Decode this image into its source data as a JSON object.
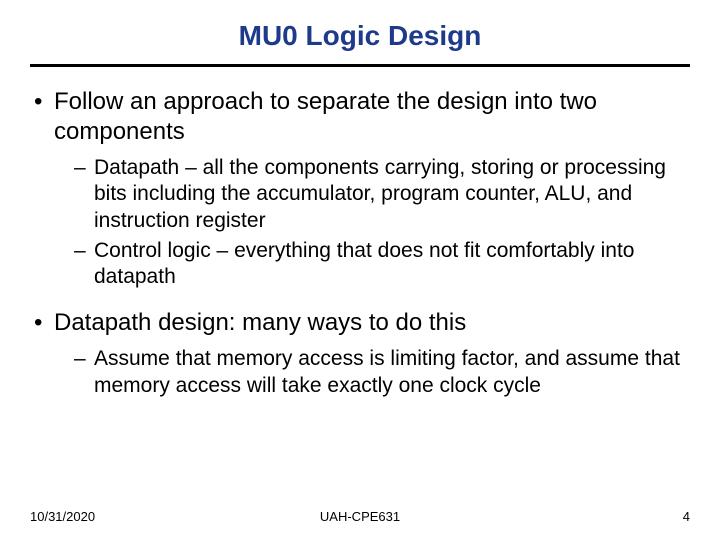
{
  "title": "MU0 Logic Design",
  "bullets": {
    "b1": "Follow an approach to separate the design into two components",
    "b1a": "Datapath – all the components carrying, storing or processing bits including the accumulator, program counter, ALU, and instruction register",
    "b1b": "Control logic – everything that does not fit comfortably into datapath",
    "b2": "Datapath design: many ways to do this",
    "b2a": "Assume that memory access is limiting factor, and assume that memory access will take exactly one clock cycle"
  },
  "footer": {
    "date": "10/31/2020",
    "course": "UAH-CPE631",
    "page": "4"
  },
  "colors": {
    "title_color": "#1e3a8a",
    "text_color": "#000000",
    "background": "#ffffff",
    "underline": "#000000"
  },
  "typography": {
    "title_fontsize": 28,
    "bullet1_fontsize": 24,
    "bullet2_fontsize": 21,
    "footer_fontsize": 13
  }
}
